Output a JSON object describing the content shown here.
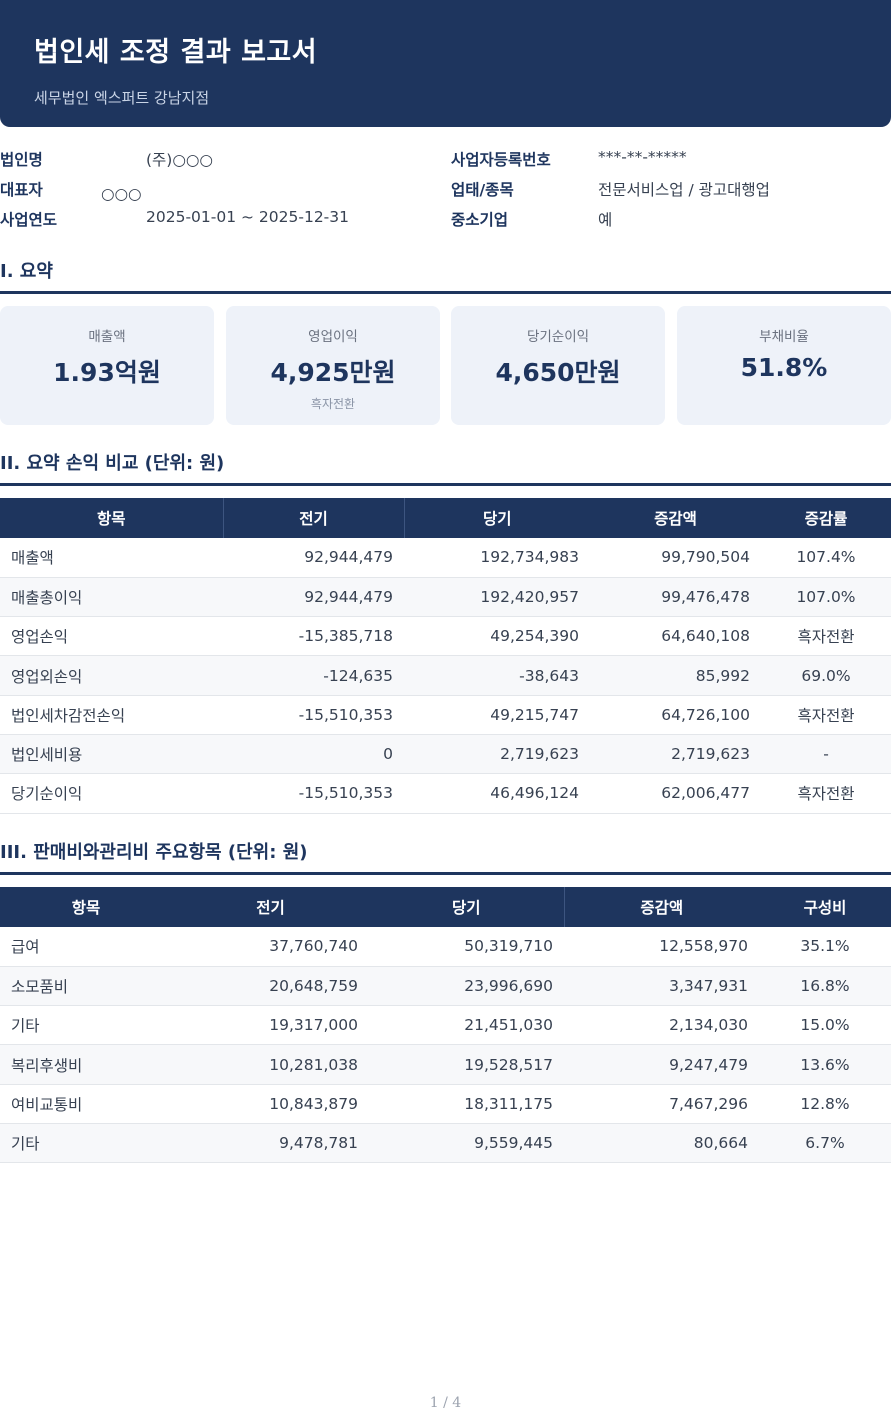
{
  "header": {
    "title": "법인세 조정 결과 보고서",
    "subtitle": "세무법인 엑스퍼트 강남지점"
  },
  "info": {
    "company_label": "법인명",
    "company_value": "(주)○○○",
    "ceo_label": "대표자",
    "ceo_value": "○○○",
    "year_label": "사업연도",
    "year_value": "2025-01-01 ~ 2025-12-31",
    "bizno_label": "사업자등록번호",
    "bizno_value": "***-**-*****",
    "industry_label": "업태/종목",
    "industry_value": "전문서비스업 / 광고대행업",
    "sme_label": "중소기업",
    "sme_value": "예"
  },
  "summary": {
    "title": "I. 요약",
    "cards": [
      {
        "label": "매출액",
        "value": "1.93억원",
        "note": ""
      },
      {
        "label": "영업이익",
        "value": "4,925만원",
        "note": "흑자전환"
      },
      {
        "label": "당기순이익",
        "value": "4,650만원",
        "note": ""
      },
      {
        "label": "부채비율",
        "value": "51.8%",
        "note": ""
      }
    ]
  },
  "pl": {
    "title": "II. 요약 손익 비교 (단위: 원)",
    "headers": [
      "항목",
      "전기",
      "당기",
      "증감액",
      "증감률"
    ],
    "rows": [
      [
        "매출액",
        "92,944,479",
        "192,734,983",
        "99,790,504",
        "107.4%"
      ],
      [
        "매출총이익",
        "92,944,479",
        "192,420,957",
        "99,476,478",
        "107.0%"
      ],
      [
        "영업손익",
        "-15,385,718",
        "49,254,390",
        "64,640,108",
        "흑자전환"
      ],
      [
        "영업외손익",
        "-124,635",
        "-38,643",
        "85,992",
        "69.0%"
      ],
      [
        "법인세차감전손익",
        "-15,510,353",
        "49,215,747",
        "64,726,100",
        "흑자전환"
      ],
      [
        "법인세비용",
        "0",
        "2,719,623",
        "2,719,623",
        "-"
      ],
      [
        "당기순이익",
        "-15,510,353",
        "46,496,124",
        "62,006,477",
        "흑자전환"
      ]
    ]
  },
  "sga": {
    "title": "III. 판매비와관리비 주요항목 (단위: 원)",
    "headers": [
      "항목",
      "전기",
      "당기",
      "증감액",
      "구성비"
    ],
    "rows": [
      [
        "급여",
        "37,760,740",
        "50,319,710",
        "12,558,970",
        "35.1%"
      ],
      [
        "소모품비",
        "20,648,759",
        "23,996,690",
        "3,347,931",
        "16.8%"
      ],
      [
        "기타",
        "19,317,000",
        "21,451,030",
        "2,134,030",
        "15.0%"
      ],
      [
        "복리후생비",
        "10,281,038",
        "19,528,517",
        "9,247,479",
        "13.6%"
      ],
      [
        "여비교통비",
        "10,843,879",
        "18,311,175",
        "7,467,296",
        "12.8%"
      ],
      [
        "기타",
        "9,478,781",
        "9,559,445",
        "80,664",
        "6.7%"
      ]
    ]
  },
  "footer": {
    "page": "1 / 4"
  }
}
